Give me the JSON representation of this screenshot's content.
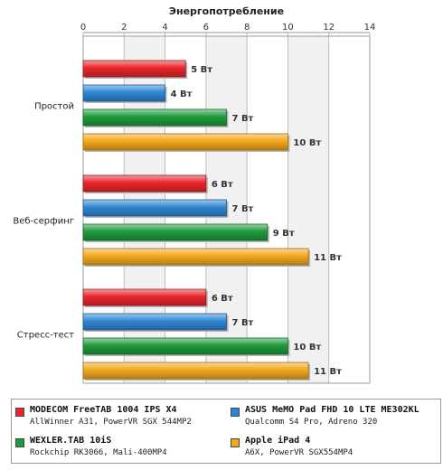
{
  "chart_data": {
    "type": "bar",
    "orientation": "horizontal",
    "title": "Энергопотребление",
    "xlim": [
      0,
      14
    ],
    "x_ticks": [
      0,
      2,
      4,
      6,
      8,
      10,
      12,
      14
    ],
    "grid": true,
    "categories": [
      "Простой",
      "Веб-серфинг",
      "Стресс-тест"
    ],
    "unit_suffix": " Вт",
    "series": [
      {
        "name": "MODECOM FreeTAB 1004 IPS X4",
        "subtitle": "AllWinner A31, PowerVR SGX 544MP2",
        "color": "#e8262b",
        "values": [
          5,
          6,
          6
        ]
      },
      {
        "name": "ASUS MeMO Pad FHD 10 LTE ME302KL",
        "subtitle": "Qualcomm S4 Pro, Adreno 320",
        "color": "#2f86d4",
        "values": [
          4,
          7,
          7
        ]
      },
      {
        "name": "WEXLER.TAB 10iS",
        "subtitle": "Rockchip RK3066, Mali-400MP4",
        "color": "#1f9a3c",
        "values": [
          7,
          9,
          10
        ]
      },
      {
        "name": "Apple iPad 4",
        "subtitle": "A6X, PowerVR SGX554MP4",
        "color": "#f2a81c",
        "values": [
          10,
          11,
          11
        ]
      }
    ],
    "legend_position": "bottom"
  }
}
